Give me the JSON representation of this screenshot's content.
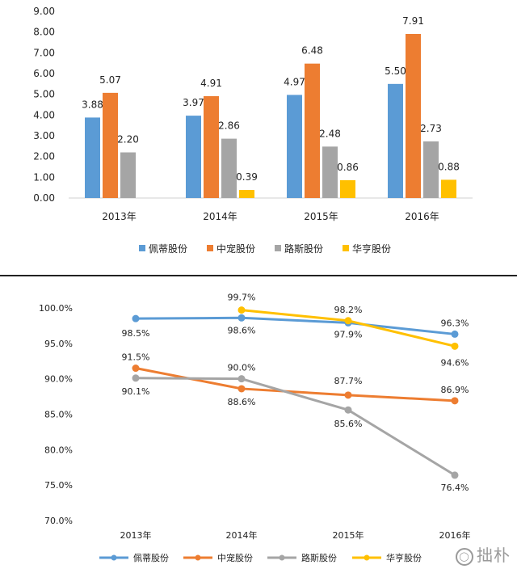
{
  "chart_data": [
    {
      "type": "bar",
      "title": "",
      "xlabel": "",
      "ylabel": "",
      "ylim": [
        0,
        9
      ],
      "yticks": [
        "0.00",
        "1.00",
        "2.00",
        "3.00",
        "4.00",
        "5.00",
        "6.00",
        "7.00",
        "8.00",
        "9.00"
      ],
      "categories": [
        "2013年",
        "2014年",
        "2015年",
        "2016年"
      ],
      "series": [
        {
          "name": "佩蒂股份",
          "color": "#5b9bd5",
          "values": [
            3.88,
            3.97,
            4.97,
            5.5
          ],
          "labels": [
            "3.88",
            "3.97",
            "4.97",
            "5.50"
          ]
        },
        {
          "name": "中宠股份",
          "color": "#ed7d31",
          "values": [
            5.07,
            4.91,
            6.48,
            7.91
          ],
          "labels": [
            "5.07",
            "4.91",
            "6.48",
            "7.91"
          ]
        },
        {
          "name": "路斯股份",
          "color": "#a5a5a5",
          "values": [
            2.2,
            2.86,
            2.48,
            2.73
          ],
          "labels": [
            "2.20",
            "2.86",
            "2.48",
            "2.73"
          ]
        },
        {
          "name": "华亨股份",
          "color": "#ffc000",
          "values": [
            null,
            0.39,
            0.86,
            0.88
          ],
          "labels": [
            null,
            "0.39",
            "0.86",
            "0.88"
          ]
        }
      ],
      "legend": "bottom",
      "grid": false
    },
    {
      "type": "line",
      "title": "",
      "xlabel": "",
      "ylabel": "",
      "ylim": [
        70,
        100
      ],
      "yticks": [
        "70.0%",
        "75.0%",
        "80.0%",
        "85.0%",
        "90.0%",
        "95.0%",
        "100.0%"
      ],
      "categories": [
        "2013年",
        "2014年",
        "2015年",
        "2016年"
      ],
      "series": [
        {
          "name": "佩蒂股份",
          "color": "#5b9bd5",
          "values": [
            98.5,
            98.6,
            97.9,
            96.3
          ],
          "labels": [
            "98.5%",
            "98.6%",
            "97.9%",
            "96.3%"
          ]
        },
        {
          "name": "中宠股份",
          "color": "#ed7d31",
          "values": [
            91.5,
            88.6,
            87.7,
            86.9
          ],
          "labels": [
            "91.5%",
            "88.6%",
            "87.7%",
            "86.9%"
          ]
        },
        {
          "name": "路斯股份",
          "color": "#a5a5a5",
          "values": [
            90.1,
            90.0,
            85.6,
            76.4
          ],
          "labels": [
            "90.1%",
            "90.0%",
            "85.6%",
            "76.4%"
          ]
        },
        {
          "name": "华亨股份",
          "color": "#ffc000",
          "values": [
            null,
            99.7,
            98.2,
            94.6
          ],
          "labels": [
            null,
            "99.7%",
            "98.2%",
            "94.6%"
          ]
        }
      ],
      "legend": "bottom",
      "grid": false
    }
  ],
  "watermark": {
    "icon": "circle-logo-icon",
    "text": "拙朴"
  }
}
